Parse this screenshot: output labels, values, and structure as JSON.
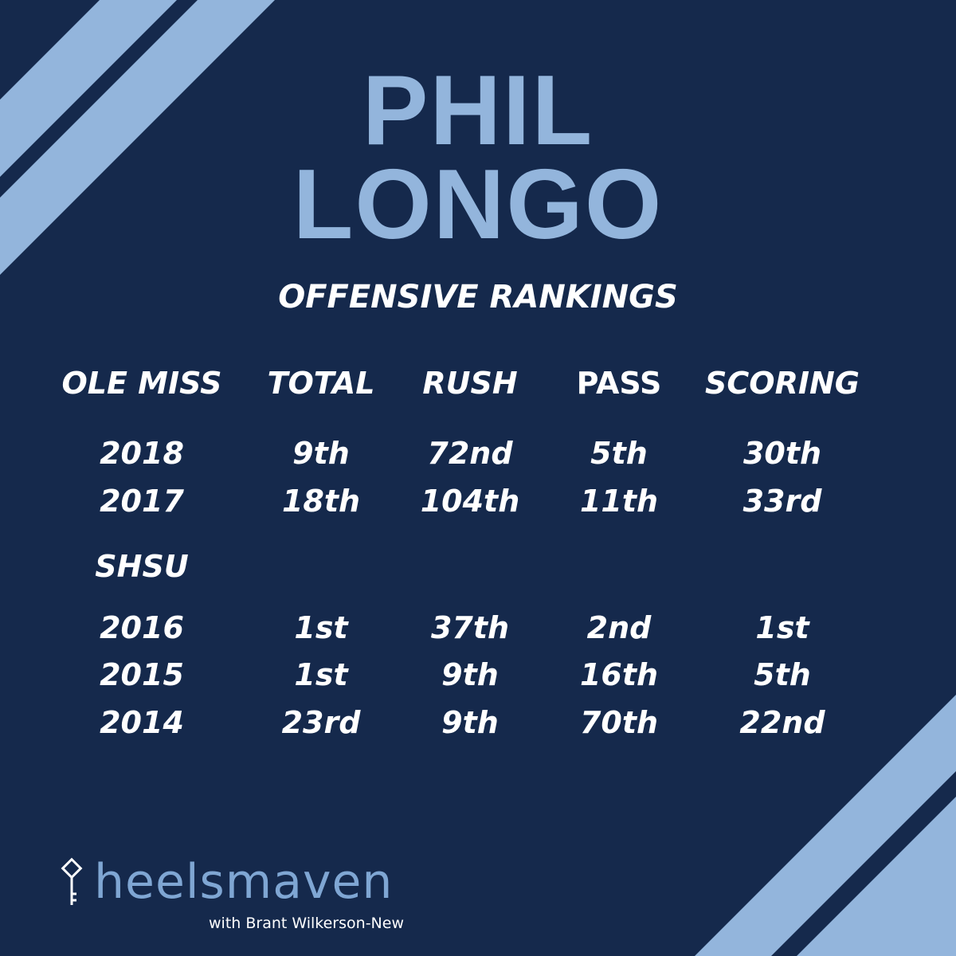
{
  "title": [
    "PHIL",
    "LONGO"
  ],
  "subtitle": "OFFENSIVE RANKINGS",
  "table": {
    "header": [
      "OLE MISS",
      "TOTAL",
      "RUSH",
      "PASS",
      "SCORING"
    ],
    "groups": [
      {
        "rows": [
          [
            "2018",
            "9th",
            "72nd",
            "5th",
            "30th"
          ],
          [
            "2017",
            "18th",
            "104th",
            "11th",
            "33rd"
          ]
        ]
      },
      {
        "label": "SHSU",
        "rows": [
          [
            "2016",
            "1st",
            "37th",
            "2nd",
            "1st"
          ],
          [
            "2015",
            "1st",
            "9th",
            "16th",
            "5th"
          ],
          [
            "2014",
            "23rd",
            "9th",
            "70th",
            "22nd"
          ]
        ]
      }
    ]
  },
  "logo": {
    "name": "heelsmaven",
    "tagline": "with Brant Wilkerson-New"
  }
}
